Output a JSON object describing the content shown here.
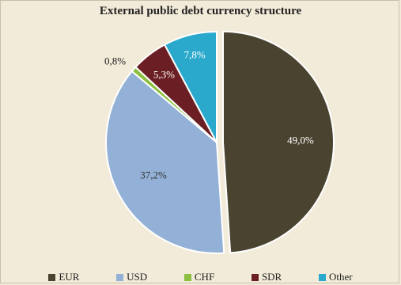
{
  "chart_data": {
    "type": "pie",
    "title": "External public debt currency structure",
    "slices": [
      {
        "label": "EUR",
        "value": 49.0,
        "display": "49,0%",
        "color": "#4a4330"
      },
      {
        "label": "USD",
        "value": 37.2,
        "display": "37,2%",
        "color": "#93b0d6"
      },
      {
        "label": "CHF",
        "value": 0.8,
        "display": "0,8%",
        "color": "#8cbf3f"
      },
      {
        "label": "SDR",
        "value": 5.3,
        "display": "5,3%",
        "color": "#6b1f24"
      },
      {
        "label": "Other",
        "value": 7.8,
        "display": "7,8%",
        "color": "#2aa9cc"
      }
    ],
    "legend_position": "bottom"
  }
}
